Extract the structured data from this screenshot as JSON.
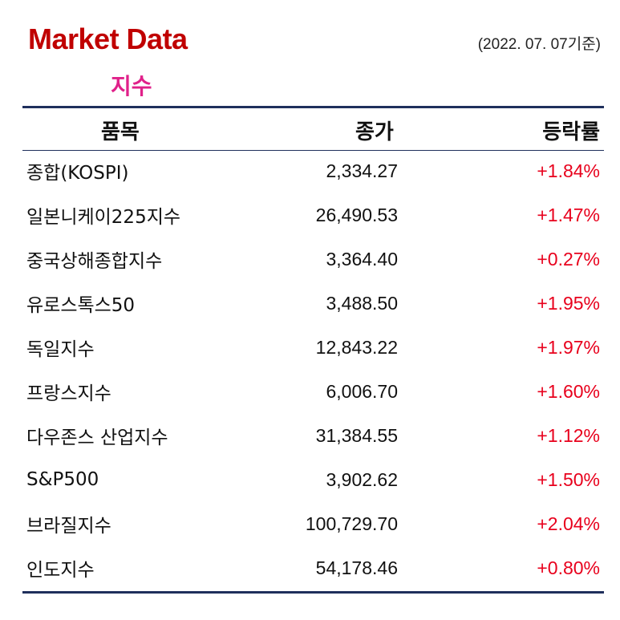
{
  "header": {
    "title": "Market Data",
    "date": "(2022. 07. 07기준)",
    "subtitle": "지수"
  },
  "colors": {
    "title": "#c00000",
    "subtitle": "#e0218a",
    "rule": "#1f2f5c",
    "positive": "#e8001c"
  },
  "table": {
    "columns": [
      "품목",
      "종가",
      "등락률"
    ],
    "rows": [
      {
        "name": "종합(KOSPI)",
        "price": "2,334.27",
        "change": "+1.84%"
      },
      {
        "name": "일본니케이225지수",
        "price": "26,490.53",
        "change": "+1.47%"
      },
      {
        "name": "중국상해종합지수",
        "price": "3,364.40",
        "change": "+0.27%"
      },
      {
        "name": "유로스톡스50",
        "price": "3,488.50",
        "change": "+1.95%"
      },
      {
        "name": "독일지수",
        "price": "12,843.22",
        "change": "+1.97%"
      },
      {
        "name": "프랑스지수",
        "price": "6,006.70",
        "change": "+1.60%"
      },
      {
        "name": "다우존스 산업지수",
        "price": "31,384.55",
        "change": "+1.12%"
      },
      {
        "name": "S&P500",
        "price": "3,902.62",
        "change": "+1.50%"
      },
      {
        "name": "브라질지수",
        "price": "100,729.70",
        "change": "+2.04%"
      },
      {
        "name": "인도지수",
        "price": "54,178.46",
        "change": "+0.80%"
      }
    ]
  }
}
